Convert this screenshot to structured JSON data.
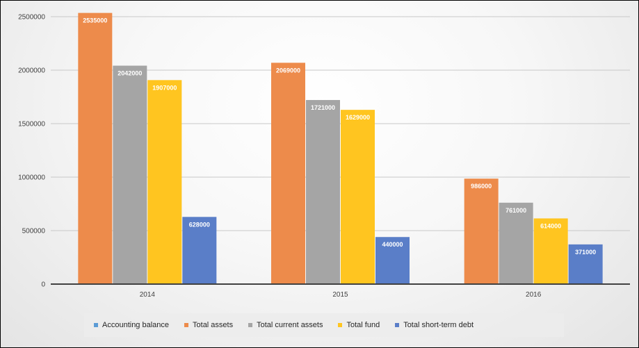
{
  "chart_data": {
    "type": "bar",
    "categories": [
      "2014",
      "2015",
      "2016"
    ],
    "series": [
      {
        "name": "Accounting balance",
        "color": "#5b9bd5",
        "values": [
          null,
          null,
          null
        ]
      },
      {
        "name": "Total assets",
        "color": "#ed8b4b",
        "values": [
          2535000,
          2069000,
          986000
        ]
      },
      {
        "name": "Total current assets",
        "color": "#a5a5a5",
        "values": [
          2042000,
          1721000,
          761000
        ]
      },
      {
        "name": "Total fund",
        "color": "#ffc520",
        "values": [
          1907000,
          1629000,
          614000
        ]
      },
      {
        "name": "Total short-term debt",
        "color": "#5a7ec8",
        "values": [
          628000,
          440000,
          371000
        ]
      }
    ],
    "y_ticks": [
      "0",
      "500000",
      "1000000",
      "1500000",
      "2000000",
      "2500000"
    ],
    "ylim": [
      0,
      2500000
    ],
    "title": "",
    "xlabel": "",
    "ylabel": "",
    "grid": true,
    "legend_position": "bottom",
    "data_labels": true
  }
}
